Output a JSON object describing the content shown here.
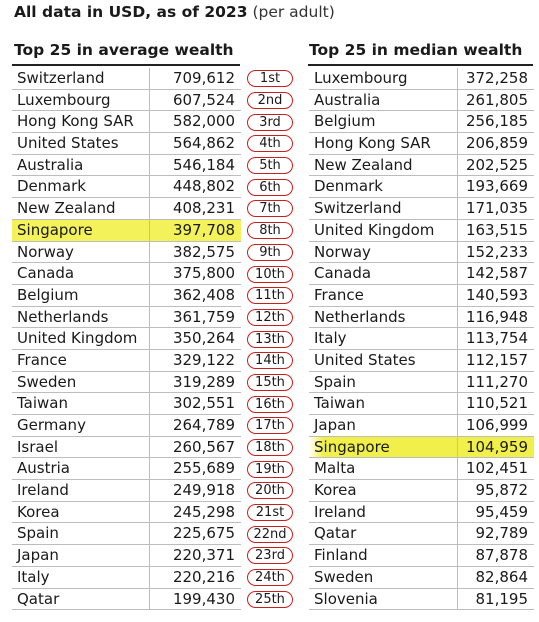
{
  "header": {
    "title_bold": "All data in USD, as of 2023",
    "title_light": "(per adult)"
  },
  "left_table": {
    "heading": "Top 25 in average wealth",
    "highlight_row": 7,
    "rows": [
      {
        "country": "Switzerland",
        "value": "709,612"
      },
      {
        "country": "Luxembourg",
        "value": "607,524"
      },
      {
        "country": "Hong Kong SAR",
        "value": "582,000"
      },
      {
        "country": "United States",
        "value": "564,862"
      },
      {
        "country": "Australia",
        "value": "546,184"
      },
      {
        "country": "Denmark",
        "value": "448,802"
      },
      {
        "country": "New Zealand",
        "value": "408,231"
      },
      {
        "country": "Singapore",
        "value": "397,708"
      },
      {
        "country": "Norway",
        "value": "382,575"
      },
      {
        "country": "Canada",
        "value": "375,800"
      },
      {
        "country": "Belgium",
        "value": "362,408"
      },
      {
        "country": "Netherlands",
        "value": "361,759"
      },
      {
        "country": "United Kingdom",
        "value": "350,264"
      },
      {
        "country": "France",
        "value": "329,122"
      },
      {
        "country": "Sweden",
        "value": "319,289"
      },
      {
        "country": "Taiwan",
        "value": "302,551"
      },
      {
        "country": "Germany",
        "value": "264,789"
      },
      {
        "country": "Israel",
        "value": "260,567"
      },
      {
        "country": "Austria",
        "value": "255,689"
      },
      {
        "country": "Ireland",
        "value": "249,918"
      },
      {
        "country": "Korea",
        "value": "245,298"
      },
      {
        "country": "Spain",
        "value": "225,675"
      },
      {
        "country": "Japan",
        "value": "220,371"
      },
      {
        "country": "Italy",
        "value": "220,216"
      },
      {
        "country": "Qatar",
        "value": "199,430"
      }
    ]
  },
  "ranks": [
    "1st",
    "2nd",
    "3rd",
    "4th",
    "5th",
    "6th",
    "7th",
    "8th",
    "9th",
    "10th",
    "11th",
    "12th",
    "13th",
    "14th",
    "15th",
    "16th",
    "17th",
    "18th",
    "19th",
    "20th",
    "21st",
    "22nd",
    "23rd",
    "24th",
    "25th"
  ],
  "right_table": {
    "heading": "Top 25 in median wealth",
    "highlight_row": 17,
    "rows": [
      {
        "country": "Luxembourg",
        "value": "372,258"
      },
      {
        "country": "Australia",
        "value": "261,805"
      },
      {
        "country": "Belgium",
        "value": "256,185"
      },
      {
        "country": "Hong Kong SAR",
        "value": "206,859"
      },
      {
        "country": "New Zealand",
        "value": "202,525"
      },
      {
        "country": "Denmark",
        "value": "193,669"
      },
      {
        "country": "Switzerland",
        "value": "171,035"
      },
      {
        "country": "United Kingdom",
        "value": "163,515"
      },
      {
        "country": "Norway",
        "value": "152,233"
      },
      {
        "country": "Canada",
        "value": "142,587"
      },
      {
        "country": "France",
        "value": "140,593"
      },
      {
        "country": "Netherlands",
        "value": "116,948"
      },
      {
        "country": "Italy",
        "value": "113,754"
      },
      {
        "country": "United States",
        "value": "112,157"
      },
      {
        "country": "Spain",
        "value": "111,270"
      },
      {
        "country": "Taiwan",
        "value": "110,521"
      },
      {
        "country": "Japan",
        "value": "106,999"
      },
      {
        "country": "Singapore",
        "value": "104,959"
      },
      {
        "country": "Malta",
        "value": "102,451"
      },
      {
        "country": "Korea",
        "value": "95,872"
      },
      {
        "country": "Ireland",
        "value": "95,459"
      },
      {
        "country": "Qatar",
        "value": "92,789"
      },
      {
        "country": "Finland",
        "value": "87,878"
      },
      {
        "country": "Sweden",
        "value": "82,864"
      },
      {
        "country": "Slovenia",
        "value": "81,195"
      }
    ]
  },
  "colors": {
    "highlight": "#f3f25a",
    "rank_ring": "#c8201e",
    "rule": "#222222",
    "grid": "#bdbdbd"
  }
}
